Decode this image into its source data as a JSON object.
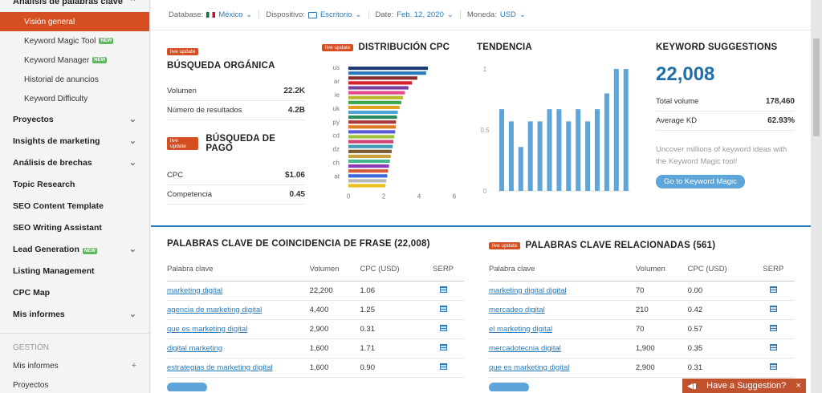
{
  "sidebar": {
    "top": "Análisis de palabras clave",
    "subs": [
      {
        "label": "Visión general",
        "new": "",
        "active": true
      },
      {
        "label": "Keyword Magic Tool",
        "new": "NEW"
      },
      {
        "label": "Keyword Manager",
        "new": "NEW"
      },
      {
        "label": "Historial de anuncios",
        "new": ""
      },
      {
        "label": "Keyword Difficulty",
        "new": ""
      }
    ],
    "sections": [
      {
        "label": "Proyectos",
        "chev": true
      },
      {
        "label": "Insights de marketing",
        "chev": true
      },
      {
        "label": "Análisis de brechas",
        "chev": true
      },
      {
        "label": "Topic Research",
        "chev": false
      },
      {
        "label": "SEO Content Template",
        "chev": false
      },
      {
        "label": "SEO Writing Assistant",
        "chev": false
      },
      {
        "label": "Lead Generation",
        "chev": true,
        "new": "NEW"
      },
      {
        "label": "Listing Management",
        "chev": false
      },
      {
        "label": "CPC Map",
        "chev": false
      },
      {
        "label": "Mis informes",
        "chev": true
      }
    ],
    "gestion": "GESTIÓN",
    "gestion_items": [
      {
        "label": "Mis informes",
        "plus": "+"
      },
      {
        "label": "Proyectos",
        "plus": ""
      }
    ]
  },
  "filters": {
    "database_label": "Database:",
    "database_value": "México",
    "device_label": "Dispositivo:",
    "device_value": "Escritorio",
    "date_label": "Date:",
    "date_value": "Feb. 12, 2020",
    "currency_label": "Moneda:",
    "currency_value": "USD"
  },
  "live_update": "live update",
  "organic": {
    "title": "BÚSQUEDA ORGÁNICA",
    "rows": [
      {
        "k": "Volumen",
        "v": "22.2K"
      },
      {
        "k": "Número de resultados",
        "v": "4.2B"
      }
    ]
  },
  "paid": {
    "title": "BÚSQUEDA DE PAGO",
    "rows": [
      {
        "k": "CPC",
        "v": "$1.06"
      },
      {
        "k": "Competencia",
        "v": "0.45"
      }
    ]
  },
  "cpc_dist": {
    "title": "DISTRIBUCIÓN CPC",
    "labels": [
      "us",
      "ar",
      "ie",
      "uk",
      "py",
      "cd",
      "dz",
      "ch",
      "at"
    ],
    "ticks": [
      "0",
      "2",
      "4",
      "6"
    ],
    "values": [
      4.5,
      4.4,
      3.9,
      3.6,
      3.4,
      3.2,
      3.1,
      3.0,
      2.9,
      2.8,
      2.75,
      2.7,
      2.68,
      2.65,
      2.6,
      2.55,
      2.5,
      2.45,
      2.4,
      2.35,
      2.3,
      2.25,
      2.2,
      2.15,
      2.1
    ],
    "colors": [
      "#1f3b73",
      "#2a7ab9",
      "#8a2b2b",
      "#d4202a",
      "#7b3fa0",
      "#e44b8c",
      "#b9b92a",
      "#3aa84a",
      "#e0a020",
      "#4fa3d9",
      "#2d8a5a",
      "#a83a3a",
      "#e07a20",
      "#5b5bd6",
      "#9fc33a",
      "#d04070",
      "#3a9ab8",
      "#7a5a30",
      "#c8a040",
      "#40b890",
      "#8e3ab8",
      "#d85a3a",
      "#3a6ad8",
      "#b8b8b8",
      "#e8c020"
    ]
  },
  "trend": {
    "title": "TENDENCIA",
    "ticks": [
      "1",
      "0.5",
      "0"
    ],
    "values": [
      0.67,
      0.57,
      0.36,
      0.57,
      0.57,
      0.67,
      0.67,
      0.57,
      0.67,
      0.57,
      0.67,
      0.8,
      1.0,
      1.0
    ]
  },
  "suggestions": {
    "title": "KEYWORD SUGGESTIONS",
    "count": "22,008",
    "rows": [
      {
        "k": "Total volume",
        "v": "178,460"
      },
      {
        "k": "Average KD",
        "v": "62.93%"
      }
    ],
    "text": "Uncover millions of keyword ideas with the Keyword Magic tool!",
    "button": "Go to Keyword Magic"
  },
  "phrase": {
    "title": "PALABRAS CLAVE DE COINCIDENCIA DE FRASE (22,008)",
    "headers": [
      "Palabra clave",
      "Volumen",
      "CPC (USD)",
      "SERP"
    ],
    "rows": [
      {
        "kw": "marketing digital",
        "vol": "22,200",
        "cpc": "1.06"
      },
      {
        "kw": "agencia de marketing digital",
        "vol": "4,400",
        "cpc": "1.25"
      },
      {
        "kw": "que es marketing digital",
        "vol": "2,900",
        "cpc": "0.31"
      },
      {
        "kw": "digital marketing",
        "vol": "1,600",
        "cpc": "1.71"
      },
      {
        "kw": "estrategias de marketing digital",
        "vol": "1,600",
        "cpc": "0.90"
      }
    ]
  },
  "related": {
    "title": "PALABRAS CLAVE RELACIONADAS (561)",
    "headers": [
      "Palabra clave",
      "Volumen",
      "CPC (USD)",
      "SERP"
    ],
    "rows": [
      {
        "kw": "marketing digital digital",
        "vol": "70",
        "cpc": "0.00"
      },
      {
        "kw": "mercadeo digital",
        "vol": "210",
        "cpc": "0.42"
      },
      {
        "kw": "el marketing digital",
        "vol": "70",
        "cpc": "0.57"
      },
      {
        "kw": "mercadotecnia digital",
        "vol": "1,900",
        "cpc": "0.35"
      },
      {
        "kw": "que es marketing digital",
        "vol": "2,900",
        "cpc": "0.31"
      }
    ]
  },
  "suggestion_tab": {
    "label": "Have a Suggestion?",
    "close": "×"
  }
}
